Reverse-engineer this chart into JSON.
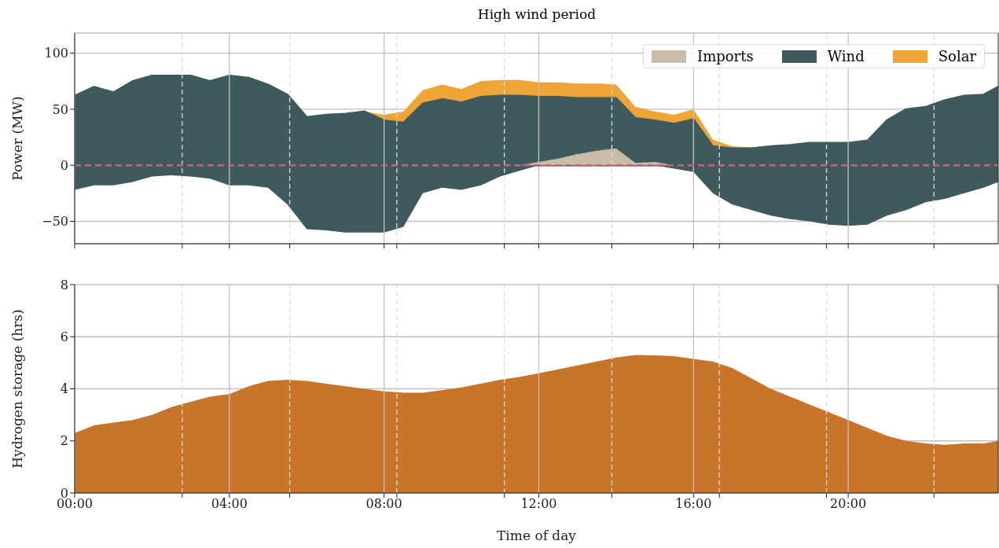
{
  "chart_data": [
    {
      "type": "area",
      "title": "High wind period",
      "ylabel": "Power (MW)",
      "grid": true,
      "legend": "top right",
      "tick_labels": "y",
      "x": [
        0,
        0.5,
        1,
        1.5,
        2,
        2.5,
        3,
        3.5,
        4,
        4.5,
        5,
        5.5,
        6,
        6.5,
        7,
        7.5,
        8,
        8.5,
        9,
        9.5,
        10,
        10.5,
        11,
        11.5,
        12,
        12.5,
        13,
        13.5,
        14,
        14.5,
        15,
        15.5,
        16,
        16.5,
        17,
        17.5,
        18,
        18.5,
        19,
        19.5,
        20,
        20.5,
        21,
        21.5,
        22,
        22.5,
        23,
        23.5,
        23.88
      ],
      "series": [
        {
          "name": "Imports",
          "color": "#c8bba8",
          "values": [
            null,
            null,
            null,
            null,
            null,
            null,
            null,
            null,
            null,
            null,
            null,
            null,
            null,
            null,
            null,
            null,
            null,
            null,
            null,
            null,
            null,
            null,
            null,
            0,
            3,
            6,
            10,
            13,
            15,
            2,
            3,
            0,
            null,
            null,
            null,
            null,
            null,
            null,
            null,
            null,
            null,
            null,
            null,
            null,
            null,
            null,
            null,
            null,
            null
          ]
        },
        {
          "name": "Wind",
          "color": "#3e5a5d",
          "values": [
            62,
            70,
            65,
            75,
            80,
            80,
            80,
            75,
            80,
            78,
            72,
            63,
            43,
            45,
            46,
            48,
            40,
            38,
            55,
            59,
            56,
            61,
            62,
            62,
            61,
            61,
            60,
            60,
            60,
            42,
            40,
            37,
            41,
            17,
            15,
            15,
            17,
            18,
            20,
            20,
            20,
            22,
            40,
            50,
            52,
            58,
            62,
            63,
            70
          ]
        },
        {
          "name": "Solar",
          "color": "#eea536",
          "values": [
            null,
            null,
            null,
            null,
            null,
            null,
            null,
            null,
            null,
            null,
            null,
            null,
            null,
            null,
            null,
            48,
            45,
            48,
            67,
            72,
            68,
            75,
            76,
            76,
            74,
            74,
            73,
            73,
            72,
            52,
            48,
            45,
            50,
            23,
            17,
            16,
            17,
            null,
            null,
            null,
            null,
            null,
            null,
            null,
            null,
            null,
            null,
            null,
            null
          ]
        },
        {
          "color": "#3e5a5d",
          "values": [
            -22,
            -18,
            -18,
            -15,
            -10,
            -9,
            -10,
            -12,
            -18,
            -18,
            -20,
            -35,
            -57,
            -58,
            -60,
            -60,
            -60,
            -55,
            -25,
            -20,
            -22,
            -18,
            -10,
            -5,
            0,
            0,
            0,
            0,
            0,
            0,
            0,
            -3,
            -6,
            -25,
            -35,
            -40,
            -45,
            -48,
            -50,
            -53,
            -54,
            -53,
            -45,
            -40,
            -33,
            -30,
            -25,
            -20,
            -15
          ]
        }
      ],
      "xlim": [
        0,
        23.88
      ],
      "ylim": [
        -70,
        118
      ],
      "yticks": [
        -50,
        0,
        50,
        100
      ],
      "ref_lines": [
        {
          "axis": "y",
          "value": 0,
          "color": "#d0606e",
          "line_style": "dashed"
        }
      ]
    },
    {
      "type": "area",
      "xlabel": "Time of day",
      "ylabel": "Hydrogen storage (hrs)",
      "grid": true,
      "color": "#c8752b",
      "x": [
        0,
        0.5,
        1,
        1.5,
        2,
        2.5,
        3,
        3.5,
        4,
        4.5,
        5,
        5.5,
        6,
        6.5,
        7,
        7.5,
        8,
        8.5,
        9,
        9.5,
        10,
        10.5,
        11,
        11.5,
        12,
        12.5,
        13,
        13.5,
        14,
        14.5,
        15,
        15.5,
        16,
        16.5,
        17,
        17.5,
        18,
        18.5,
        19,
        19.5,
        20,
        20.5,
        21,
        21.5,
        22,
        22.5,
        23,
        23.5,
        23.88
      ],
      "values": [
        2.3,
        2.6,
        2.7,
        2.8,
        3.0,
        3.3,
        3.5,
        3.7,
        3.8,
        4.1,
        4.3,
        4.35,
        4.3,
        4.2,
        4.1,
        4.0,
        3.9,
        3.85,
        3.85,
        3.95,
        4.05,
        4.2,
        4.35,
        4.45,
        4.6,
        4.75,
        4.9,
        5.05,
        5.2,
        5.3,
        5.28,
        5.25,
        5.15,
        5.05,
        4.8,
        4.4,
        4.0,
        3.7,
        3.4,
        3.1,
        2.8,
        2.5,
        2.2,
        2.0,
        1.9,
        1.85,
        1.9,
        1.9,
        2.0
      ],
      "xlim": [
        0,
        23.88
      ],
      "xticks": [
        {
          "value": 0,
          "label": "00:00"
        },
        {
          "value": 2.78,
          "label": null
        },
        {
          "value": 4,
          "label": "04:00"
        },
        {
          "value": 5.56,
          "label": null
        },
        {
          "value": 8,
          "label": "08:00"
        },
        {
          "value": 8.33,
          "label": null
        },
        {
          "value": 11.11,
          "label": null
        },
        {
          "value": 12,
          "label": "12:00"
        },
        {
          "value": 13.89,
          "label": null
        },
        {
          "value": 16,
          "label": "16:00"
        },
        {
          "value": 16.67,
          "label": null
        },
        {
          "value": 19.44,
          "label": null
        },
        {
          "value": 20,
          "label": "20:00"
        },
        {
          "value": 22.22,
          "label": null
        }
      ],
      "ylim": [
        0,
        8
      ],
      "yticks": [
        0,
        2,
        4,
        6,
        8
      ]
    }
  ]
}
